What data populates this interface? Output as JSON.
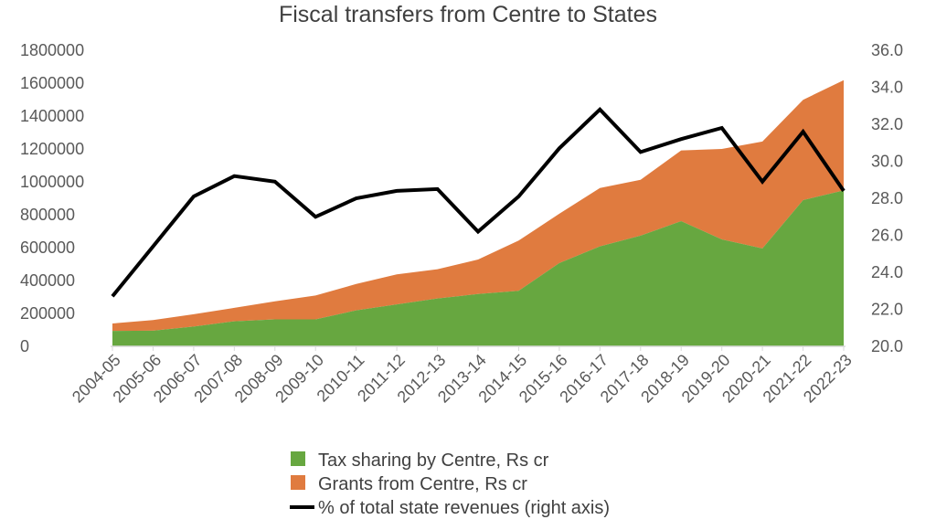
{
  "chart_data": {
    "type": "area",
    "title": "Fiscal transfers from Centre to States",
    "categories": [
      "2004-05",
      "2005-06",
      "2006-07",
      "2007-08",
      "2008-09",
      "2009-10",
      "2010-11",
      "2011-12",
      "2012-13",
      "2013-14",
      "2014-15",
      "2015-16",
      "2016-17",
      "2017-18",
      "2018-19",
      "2019-20",
      "2020-21",
      "2021-22",
      "2022-23"
    ],
    "left_axis": {
      "min": 0,
      "max": 1800000,
      "ticks": [
        "0",
        "200000",
        "400000",
        "600000",
        "800000",
        "1000000",
        "1200000",
        "1400000",
        "1600000",
        "1800000"
      ]
    },
    "right_axis": {
      "min": 20.0,
      "max": 36.0,
      "ticks": [
        "20.0",
        "22.0",
        "24.0",
        "26.0",
        "28.0",
        "30.0",
        "32.0",
        "34.0",
        "36.0"
      ]
    },
    "series": [
      {
        "name": "Tax sharing by Centre, Rs cr",
        "type": "area",
        "axis": "left",
        "color": "#67a740",
        "values": [
          94000,
          95000,
          120000,
          152000,
          164000,
          164000,
          219000,
          255000,
          291000,
          318000,
          338000,
          506000,
          608000,
          673000,
          761000,
          650000,
          595000,
          889000,
          948000
        ]
      },
      {
        "name": "Grants from Centre, Rs cr",
        "type": "area",
        "axis": "left",
        "stacked": true,
        "color": "#e07b3f",
        "values": [
          45000,
          65000,
          75000,
          82000,
          110000,
          145000,
          160000,
          182000,
          178000,
          210000,
          305000,
          300000,
          355000,
          340000,
          430000,
          550000,
          650000,
          610000,
          670000
        ]
      },
      {
        "name": "% of total state revenues (right axis)",
        "type": "line",
        "axis": "right",
        "color": "#000000",
        "values": [
          22.7,
          25.4,
          28.1,
          29.2,
          28.9,
          27.0,
          28.0,
          28.4,
          28.5,
          26.2,
          28.1,
          30.7,
          32.8,
          30.5,
          31.2,
          31.8,
          28.9,
          31.6,
          28.4
        ]
      }
    ],
    "legend_position": "bottom",
    "grid": false
  }
}
